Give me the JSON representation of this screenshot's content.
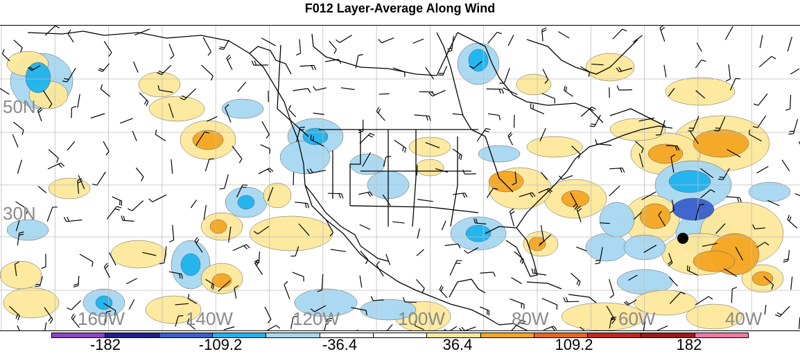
{
  "title": "F012 Layer-Average Along Wind",
  "lat_labels": [
    "50N",
    "30N"
  ],
  "lon_labels": [
    "160W",
    "140W",
    "120W",
    "100W",
    "80W",
    "60W",
    "40W"
  ],
  "colorbar": {
    "colors": [
      "#8e44c8",
      "#1f1f8f",
      "#3a5fcd",
      "#1eb4ee",
      "#a7d8f2",
      "#ffffff",
      "#ffffff",
      "#fde89a",
      "#f5a623",
      "#e8681a",
      "#c0281e",
      "#a01818",
      "#f07aa5"
    ],
    "labels": [
      "-182",
      "-109.2",
      "-36.4",
      "36.4",
      "109.2",
      "182"
    ]
  },
  "colors": {
    "positive_light": "#fde89a",
    "positive_mid": "#f5a623",
    "positive_strong": "#e8681a",
    "negative_light": "#a7d8f2",
    "negative_mid": "#1eb4ee",
    "negative_strong": "#3a5fcd",
    "grid": "#bdbdbd",
    "coast": "#000000"
  }
}
